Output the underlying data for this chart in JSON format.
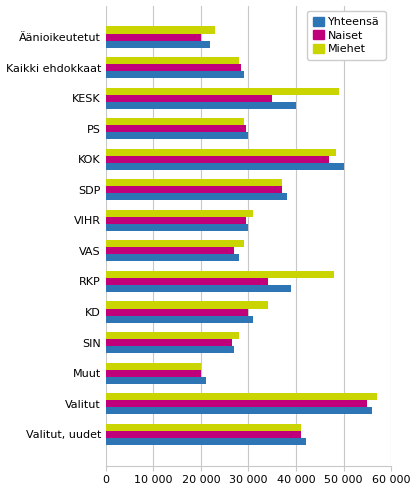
{
  "categories": [
    "Äänioikeutetut",
    "Kaikki ehdokkaat",
    "KESK",
    "PS",
    "KOK",
    "SDP",
    "VIHR",
    "VAS",
    "RKP",
    "KD",
    "SIN",
    "Muut",
    "Valitut",
    "Valitut, uudet"
  ],
  "series": {
    "Yhteensä": [
      22000,
      29000,
      40000,
      30000,
      50000,
      38000,
      30000,
      28000,
      39000,
      31000,
      27000,
      21000,
      56000,
      42000
    ],
    "Naiset": [
      20000,
      28500,
      35000,
      29500,
      47000,
      37000,
      29500,
      27000,
      34000,
      30000,
      26500,
      20000,
      55000,
      41000
    ],
    "Miehet": [
      23000,
      28000,
      49000,
      29000,
      48500,
      37000,
      31000,
      29000,
      48000,
      34000,
      28000,
      20000,
      57000,
      41000
    ]
  },
  "colors": {
    "Yhteensä": "#2E75B6",
    "Naiset": "#C0007A",
    "Miehet": "#C9D400"
  },
  "xlim": [
    0,
    60000
  ],
  "xticks": [
    0,
    10000,
    20000,
    30000,
    40000,
    50000,
    60000
  ],
  "xtick_labels": [
    "0",
    "10 000",
    "20 000",
    "30 000",
    "40 000",
    "50 000",
    "60 000"
  ],
  "grid_color": "#C8C8C8",
  "background_color": "#FFFFFF",
  "bar_height": 0.23,
  "fontsize": 8.0
}
